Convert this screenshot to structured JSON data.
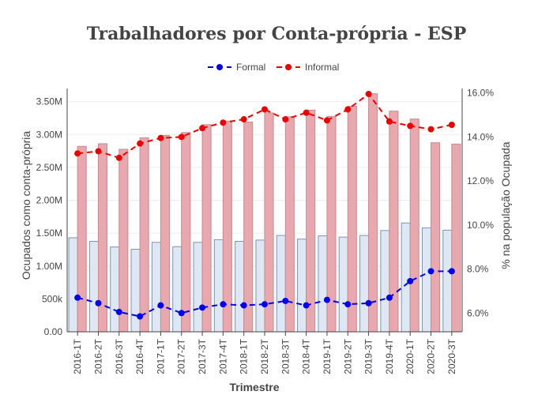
{
  "chart_data": {
    "type": "bar+line",
    "title": "Trabalhadores por Conta-própria - ESP",
    "xlabel": "Trimestre",
    "ylabel_left": "Ocupados como conta-própria",
    "ylabel_right": "% na população Ocupada",
    "categories": [
      "2016-1T",
      "2016-2T",
      "2016-3T",
      "2016-4T",
      "2017-1T",
      "2017-2T",
      "2017-3T",
      "2017-4T",
      "2018-1T",
      "2018-2T",
      "2018-3T",
      "2018-4T",
      "2019-1T",
      "2019-2T",
      "2019-3T",
      "2019-4T",
      "2020-1T",
      "2020-2T",
      "2020-3T"
    ],
    "ylim_left": [
      0,
      3700000
    ],
    "yticks_left": [
      0,
      500000,
      1000000,
      1500000,
      2000000,
      2500000,
      3000000,
      3500000
    ],
    "yticklabels_left": [
      "0.00",
      "500k",
      "1.00M",
      "1.50M",
      "2.00M",
      "2.50M",
      "3.00M",
      "3.50M"
    ],
    "ylim_right": [
      5.15,
      16.2
    ],
    "yticks_right": [
      6,
      8,
      10,
      12,
      14,
      16
    ],
    "yticklabels_right": [
      "6.0%",
      "8.0%",
      "10.0%",
      "12.0%",
      "14.0%",
      "16.0%"
    ],
    "bars": [
      {
        "name": "Formal",
        "color": "#dde8f4",
        "edge": "#7e93b0",
        "values": [
          1430000,
          1375000,
          1290000,
          1255000,
          1360000,
          1295000,
          1360000,
          1400000,
          1375000,
          1395000,
          1465000,
          1410000,
          1460000,
          1440000,
          1465000,
          1540000,
          1655000,
          1580000,
          1545000
        ]
      },
      {
        "name": "Informal",
        "color": "#e8a8ad",
        "edge": "#c88a8f",
        "values": [
          2820000,
          2860000,
          2775000,
          2950000,
          2985000,
          3030000,
          3150000,
          3205000,
          3190000,
          3330000,
          3270000,
          3370000,
          3275000,
          3430000,
          3620000,
          3355000,
          3235000,
          2875000,
          2855000
        ]
      }
    ],
    "series": [
      {
        "name": "Formal",
        "color": "#0000ee",
        "values": [
          6.7,
          6.45,
          6.05,
          5.85,
          6.35,
          6.0,
          6.25,
          6.4,
          6.35,
          6.4,
          6.55,
          6.35,
          6.6,
          6.4,
          6.45,
          6.7,
          7.45,
          7.9,
          7.9
        ]
      },
      {
        "name": "Informal",
        "color": "#ee0000",
        "values": [
          13.25,
          13.35,
          13.05,
          13.7,
          13.95,
          14.0,
          14.4,
          14.65,
          14.8,
          15.25,
          14.8,
          15.1,
          14.75,
          15.25,
          15.95,
          14.7,
          14.5,
          14.35,
          14.55
        ]
      }
    ],
    "legend": [
      "Formal",
      "Informal"
    ],
    "grid": true
  }
}
